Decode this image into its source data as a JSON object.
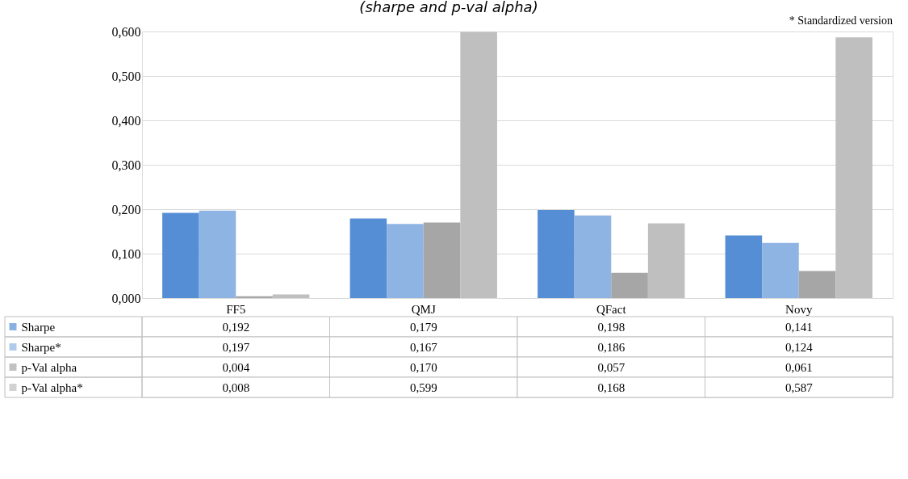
{
  "chart_data": {
    "type": "bar",
    "title": "(sharpe and p-val alpha)",
    "annotations": [
      "* Standardized version"
    ],
    "categories": [
      "FF5",
      "QMJ",
      "QFact",
      "Novy"
    ],
    "series": [
      {
        "name": "Sharpe",
        "color": "#558ed5",
        "values": [
          0.192,
          0.179,
          0.198,
          0.141
        ],
        "value_labels": [
          "0,192",
          "0,179",
          "0,198",
          "0,141"
        ]
      },
      {
        "name": "Sharpe*",
        "color": "#8eb4e3",
        "values": [
          0.197,
          0.167,
          0.186,
          0.124
        ],
        "value_labels": [
          "0,197",
          "0,167",
          "0,186",
          "0,124"
        ]
      },
      {
        "name": "p-Val alpha",
        "color": "#a6a6a6",
        "values": [
          0.004,
          0.17,
          0.057,
          0.061
        ],
        "value_labels": [
          "0,004",
          "0,170",
          "0,057",
          "0,061"
        ]
      },
      {
        "name": "p-Val alpha*",
        "color": "#bfbfbf",
        "values": [
          0.008,
          0.599,
          0.168,
          0.587
        ],
        "value_labels": [
          "0,008",
          "0,599",
          "0,168",
          "0,587"
        ]
      }
    ],
    "ylim": [
      0,
      0.6
    ],
    "yticks": [
      {
        "value": 0,
        "label": "0,000"
      },
      {
        "value": 0.1,
        "label": "0,100"
      },
      {
        "value": 0.2,
        "label": "0,200"
      },
      {
        "value": 0.3,
        "label": "0,300"
      },
      {
        "value": 0.4,
        "label": "0,400"
      },
      {
        "value": 0.5,
        "label": "0,500"
      },
      {
        "value": 0.6,
        "label": "0,600"
      }
    ],
    "grid": "y",
    "legend": "bottom"
  }
}
